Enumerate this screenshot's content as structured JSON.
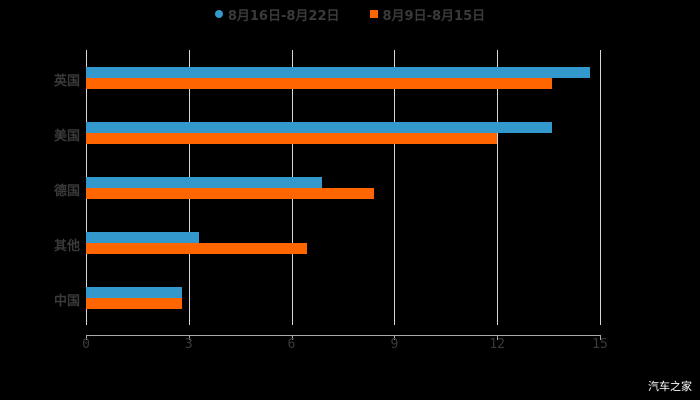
{
  "chart_data": {
    "type": "bar",
    "orientation": "horizontal",
    "title": "",
    "categories": [
      "英国",
      "美国",
      "德国",
      "其他",
      "中国"
    ],
    "series": [
      {
        "name": "8月16日-8月22日",
        "color": "#3399cc",
        "marker": "circle",
        "values": [
          14.7,
          13.6,
          6.9,
          3.3,
          2.8
        ]
      },
      {
        "name": "8月9日-8月15日",
        "color": "#ff6600",
        "marker": "square",
        "values": [
          13.6,
          12.0,
          8.4,
          6.45,
          2.8
        ]
      }
    ],
    "xlabel": "",
    "ylabel": "",
    "xlim": [
      0,
      15
    ],
    "xticks": [
      "0",
      "3",
      "6",
      "9",
      "12",
      "15"
    ],
    "grid": true,
    "legend_position": "top"
  },
  "legend": [
    {
      "label": "8月16日-8月22日",
      "color": "#3399cc"
    },
    {
      "label": "8月9日-8月15日",
      "color": "#ff6600"
    }
  ],
  "watermark": "汽车之家"
}
